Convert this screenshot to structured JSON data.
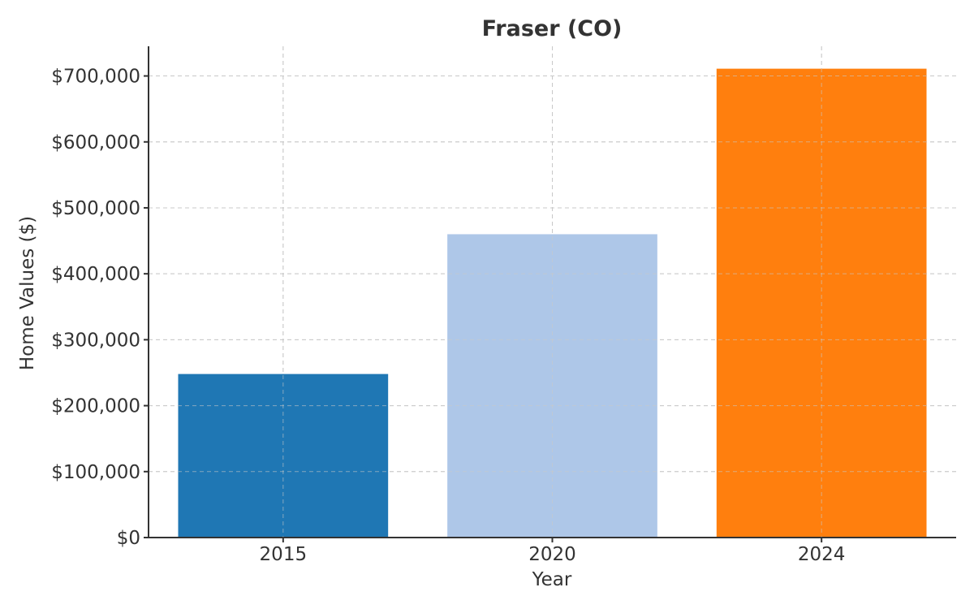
{
  "chart_data": {
    "type": "bar",
    "title": "Fraser (CO)",
    "xlabel": "Year",
    "ylabel": "Home Values ($)",
    "categories": [
      "2015",
      "2020",
      "2024"
    ],
    "values": [
      248000,
      460000,
      711000
    ],
    "colors": [
      "#1f77b4",
      "#aec7e8",
      "#ff7f0e"
    ],
    "ylim": [
      0,
      745000
    ],
    "yticks": [
      0,
      100000,
      200000,
      300000,
      400000,
      500000,
      600000,
      700000
    ],
    "ytick_labels": [
      "$0",
      "$100,000",
      "$200,000",
      "$300,000",
      "$400,000",
      "$500,000",
      "$600,000",
      "$700,000"
    ],
    "grid": true
  }
}
